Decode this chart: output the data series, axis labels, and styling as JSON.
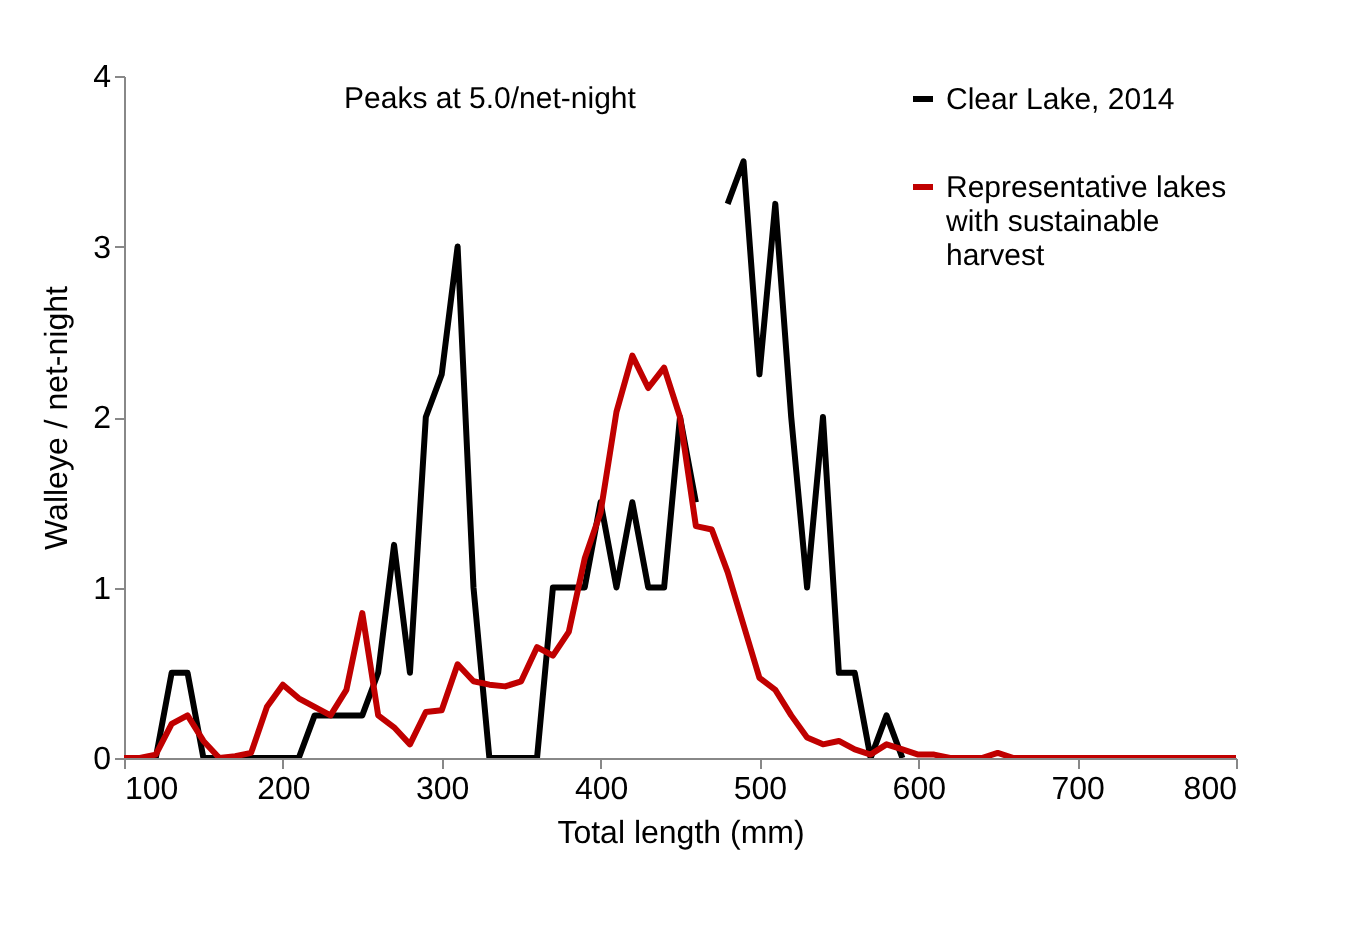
{
  "chart_data": {
    "type": "line",
    "xlabel": "Total length (mm)",
    "ylabel": "Walleye / net-night",
    "annotations": [
      "Peaks at 5.0/net-night"
    ],
    "x": [
      100,
      110,
      120,
      130,
      140,
      150,
      160,
      170,
      180,
      190,
      200,
      210,
      220,
      230,
      240,
      250,
      260,
      270,
      280,
      290,
      300,
      310,
      320,
      330,
      340,
      350,
      360,
      370,
      380,
      390,
      400,
      410,
      420,
      430,
      440,
      450,
      460,
      470,
      480,
      490,
      500,
      510,
      520,
      530,
      540,
      550,
      560,
      570,
      580,
      590,
      600,
      610,
      620,
      630,
      640,
      650,
      660,
      670,
      680,
      690,
      700,
      710,
      720,
      730,
      740,
      750,
      760,
      770,
      780,
      790,
      800
    ],
    "series": [
      {
        "name": "Clear Lake, 2014",
        "color": "#000000",
        "values": [
          0,
          0,
          0,
          0.5,
          0.5,
          0,
          0,
          0,
          0,
          0,
          0,
          0,
          0.25,
          0.25,
          0.25,
          0.25,
          0.5,
          1.25,
          0.5,
          2,
          2.25,
          3,
          1,
          0,
          0,
          0,
          0,
          1,
          1,
          1,
          1.5,
          1,
          1.5,
          1,
          1,
          2,
          1.5,
          null,
          3.25,
          3.5,
          2.25,
          3.25,
          2,
          1,
          2,
          0.5,
          0.5,
          0,
          0.25,
          0,
          null,
          null,
          null,
          null,
          null,
          null,
          null,
          null,
          null,
          null,
          null,
          null,
          null,
          null,
          null,
          null,
          null,
          null,
          null,
          null,
          null
        ]
      },
      {
        "name": "Representative lakes with sustainable harvest",
        "color": "#c00000",
        "values": [
          0,
          0,
          0.02,
          0.2,
          0.25,
          0.1,
          0,
          0.01,
          0.03,
          0.3,
          0.43,
          0.35,
          0.3,
          0.25,
          0.4,
          0.85,
          0.25,
          0.18,
          0.08,
          0.27,
          0.28,
          0.55,
          0.45,
          0.43,
          0.42,
          0.45,
          0.65,
          0.6,
          0.74,
          1.17,
          1.44,
          2.03,
          2.36,
          2.17,
          2.29,
          2,
          1.36,
          1.34,
          1.09,
          0.78,
          0.47,
          0.4,
          0.25,
          0.12,
          0.08,
          0.1,
          0.05,
          0.02,
          0.08,
          0.05,
          0.02,
          0.02,
          0,
          0,
          0,
          0.03,
          0,
          0,
          0,
          0,
          0,
          0,
          0,
          0,
          0,
          0,
          0,
          0,
          0,
          0,
          0
        ]
      }
    ],
    "xlim": [
      100,
      800
    ],
    "xticks": [
      100,
      200,
      300,
      400,
      500,
      600,
      700,
      800
    ],
    "ylim": [
      0,
      4
    ],
    "yticks": [
      0,
      1,
      2,
      3,
      4
    ],
    "legend": "top right"
  }
}
